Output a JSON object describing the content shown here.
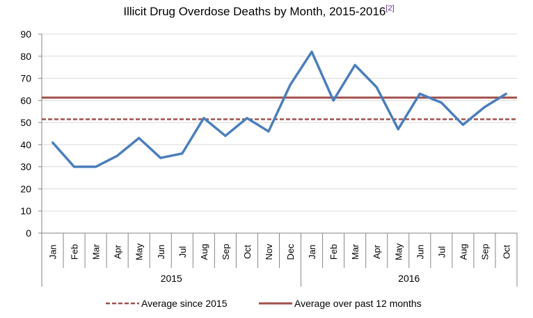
{
  "chart_data": {
    "type": "line",
    "title": "Illicit Drug Overdose Deaths by Month, 2015-2016",
    "title_footnote": "[2]",
    "categories": [
      "Jan",
      "Feb",
      "Mar",
      "Apr",
      "May",
      "Jun",
      "Jul",
      "Aug",
      "Sep",
      "Oct",
      "Nov",
      "Dec",
      "Jan",
      "Feb",
      "Mar",
      "Apr",
      "May",
      "Jun",
      "Jul",
      "Aug",
      "Sep",
      "Oct"
    ],
    "groups": [
      {
        "label": "2015",
        "count": 12
      },
      {
        "label": "2016",
        "count": 10
      }
    ],
    "series": [
      {
        "values": [
          41,
          30,
          30,
          35,
          43,
          34,
          36,
          52,
          44,
          52,
          46,
          67,
          82,
          60,
          76,
          66,
          47,
          63,
          59,
          49,
          57,
          63
        ],
        "color": "#4a7ebb"
      }
    ],
    "reference_lines": [
      {
        "name": "Average since 2015",
        "value": 51.5,
        "style": "dashed",
        "color": "#a0504d"
      },
      {
        "name": "Average over past 12 months",
        "value": 61.3,
        "style": "solid",
        "color": "#a0504d"
      }
    ],
    "ylim": [
      0,
      90
    ],
    "yticks": [
      0,
      10,
      20,
      30,
      40,
      50,
      60,
      70,
      80,
      90
    ],
    "grid": true,
    "legend_position": "bottom",
    "xlabel": "",
    "ylabel": ""
  }
}
